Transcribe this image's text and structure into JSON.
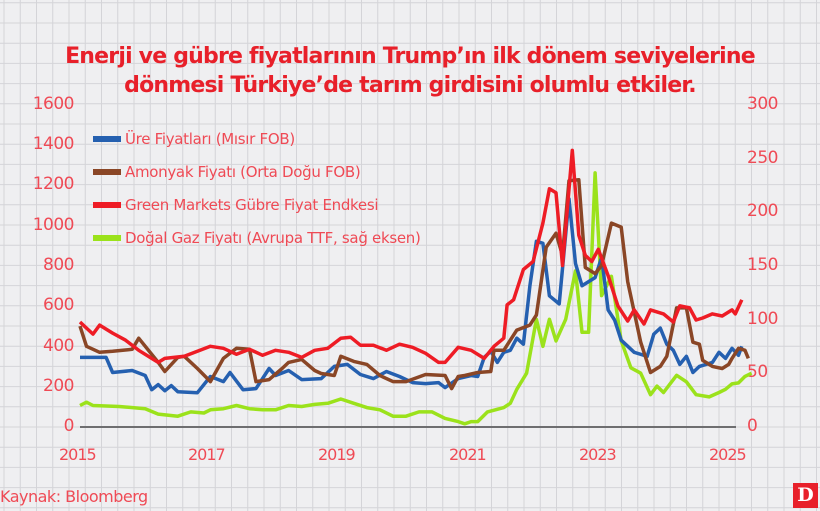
{
  "title_line1": "Enerji ve gübre fiyatlarının Trump’ın ilk dönem seviyelerine",
  "title_line2": "dönmesi Türkiye’de tarım girdisini olumlu etkiler.",
  "source": "Kaynak: Bloomberg",
  "logo": "D",
  "colors": {
    "background": "#efeff1",
    "grid": "#d4d4d8",
    "axis_text": "#ef4a55",
    "title": "#e8202a",
    "baseline": "#6e6e70"
  },
  "left_axis_ticks": [
    "1600",
    "1400",
    "1200",
    "1000",
    "800",
    "600",
    "400",
    "200",
    "0"
  ],
  "right_axis_ticks": [
    "300",
    "250",
    "200",
    "150",
    "100",
    "50",
    "0"
  ],
  "x_axis_ticks": [
    "2015",
    "2017",
    "2019",
    "2021",
    "2023",
    "2025"
  ],
  "legend": [
    {
      "label": "Üre Fiyatları (Mısır FOB)",
      "color": "#2560b0"
    },
    {
      "label": "Amonyak Fiyatı (Orta Doğu FOB)",
      "color": "#8a4626"
    },
    {
      "label": "Green Markets Gübre Fiyat Endkesi",
      "color": "#ee1c25"
    },
    {
      "label": "Doğal Gaz Fiyatı (Avrupa TTF, sağ eksen)",
      "color": "#9be21b"
    }
  ],
  "chart_data": {
    "type": "line",
    "title": "Enerji ve gübre fiyatlarının Trump’ın ilk dönem seviyelerine dönmesi Türkiye’de tarım girdisini olumlu etkiler.",
    "xlabel": "",
    "ylabel_left": "",
    "ylabel_right": "",
    "xlim": [
      2015,
      2025.1
    ],
    "ylim_left": [
      0,
      1600
    ],
    "ylim_right": [
      0,
      300
    ],
    "grid": true,
    "legend_position": "upper left",
    "series": [
      {
        "name": "Üre Fiyatları (Mısır FOB)",
        "axis": "left",
        "color": "#2560b0",
        "points": [
          [
            2015.0,
            345
          ],
          [
            2015.4,
            345
          ],
          [
            2015.5,
            270
          ],
          [
            2015.8,
            280
          ],
          [
            2016.0,
            255
          ],
          [
            2016.1,
            185
          ],
          [
            2016.2,
            210
          ],
          [
            2016.3,
            180
          ],
          [
            2016.4,
            205
          ],
          [
            2016.5,
            175
          ],
          [
            2016.8,
            170
          ],
          [
            2017.0,
            250
          ],
          [
            2017.2,
            225
          ],
          [
            2017.3,
            270
          ],
          [
            2017.5,
            185
          ],
          [
            2017.7,
            190
          ],
          [
            2017.9,
            290
          ],
          [
            2018.0,
            255
          ],
          [
            2018.2,
            280
          ],
          [
            2018.4,
            235
          ],
          [
            2018.7,
            240
          ],
          [
            2018.9,
            300
          ],
          [
            2019.1,
            310
          ],
          [
            2019.3,
            260
          ],
          [
            2019.5,
            240
          ],
          [
            2019.7,
            275
          ],
          [
            2019.9,
            250
          ],
          [
            2020.1,
            220
          ],
          [
            2020.3,
            215
          ],
          [
            2020.5,
            220
          ],
          [
            2020.6,
            195
          ],
          [
            2020.8,
            240
          ],
          [
            2021.0,
            255
          ],
          [
            2021.1,
            250
          ],
          [
            2021.2,
            345
          ],
          [
            2021.3,
            375
          ],
          [
            2021.4,
            320
          ],
          [
            2021.5,
            370
          ],
          [
            2021.6,
            380
          ],
          [
            2021.7,
            440
          ],
          [
            2021.8,
            410
          ],
          [
            2021.9,
            700
          ],
          [
            2022.0,
            920
          ],
          [
            2022.1,
            910
          ],
          [
            2022.2,
            650
          ],
          [
            2022.35,
            610
          ],
          [
            2022.5,
            1130
          ],
          [
            2022.6,
            810
          ],
          [
            2022.7,
            700
          ],
          [
            2022.9,
            740
          ],
          [
            2023.0,
            840
          ],
          [
            2023.1,
            580
          ],
          [
            2023.2,
            530
          ],
          [
            2023.3,
            430
          ],
          [
            2023.5,
            370
          ],
          [
            2023.7,
            350
          ],
          [
            2023.8,
            460
          ],
          [
            2023.9,
            490
          ],
          [
            2024.0,
            410
          ],
          [
            2024.1,
            380
          ],
          [
            2024.2,
            310
          ],
          [
            2024.3,
            350
          ],
          [
            2024.4,
            270
          ],
          [
            2024.5,
            300
          ],
          [
            2024.7,
            320
          ],
          [
            2024.8,
            370
          ],
          [
            2024.9,
            340
          ],
          [
            2025.0,
            390
          ],
          [
            2025.1,
            355
          ],
          [
            2025.15,
            400
          ]
        ]
      },
      {
        "name": "Amonyak Fiyatı (Orta Doğu FOB)",
        "axis": "left",
        "color": "#8a4626",
        "points": [
          [
            2015.0,
            500
          ],
          [
            2015.1,
            400
          ],
          [
            2015.3,
            370
          ],
          [
            2015.5,
            375
          ],
          [
            2015.8,
            385
          ],
          [
            2015.9,
            440
          ],
          [
            2016.2,
            320
          ],
          [
            2016.3,
            275
          ],
          [
            2016.5,
            345
          ],
          [
            2016.6,
            350
          ],
          [
            2016.8,
            290
          ],
          [
            2017.0,
            225
          ],
          [
            2017.2,
            340
          ],
          [
            2017.4,
            390
          ],
          [
            2017.6,
            385
          ],
          [
            2017.7,
            225
          ],
          [
            2017.9,
            235
          ],
          [
            2018.1,
            290
          ],
          [
            2018.2,
            320
          ],
          [
            2018.4,
            335
          ],
          [
            2018.6,
            280
          ],
          [
            2018.7,
            265
          ],
          [
            2018.9,
            255
          ],
          [
            2019.0,
            350
          ],
          [
            2019.2,
            325
          ],
          [
            2019.4,
            310
          ],
          [
            2019.6,
            255
          ],
          [
            2019.8,
            225
          ],
          [
            2020.0,
            225
          ],
          [
            2020.3,
            260
          ],
          [
            2020.6,
            255
          ],
          [
            2020.7,
            190
          ],
          [
            2020.8,
            250
          ],
          [
            2020.9,
            255
          ],
          [
            2021.1,
            270
          ],
          [
            2021.3,
            275
          ],
          [
            2021.35,
            380
          ],
          [
            2021.5,
            380
          ],
          [
            2021.7,
            480
          ],
          [
            2021.9,
            505
          ],
          [
            2022.0,
            555
          ],
          [
            2022.15,
            890
          ],
          [
            2022.3,
            960
          ],
          [
            2022.4,
            850
          ],
          [
            2022.5,
            1220
          ],
          [
            2022.65,
            1225
          ],
          [
            2022.75,
            790
          ],
          [
            2022.9,
            760
          ],
          [
            2023.0,
            800
          ],
          [
            2023.15,
            1010
          ],
          [
            2023.3,
            990
          ],
          [
            2023.4,
            720
          ],
          [
            2023.6,
            420
          ],
          [
            2023.75,
            270
          ],
          [
            2023.9,
            300
          ],
          [
            2024.0,
            350
          ],
          [
            2024.15,
            590
          ],
          [
            2024.3,
            590
          ],
          [
            2024.4,
            420
          ],
          [
            2024.5,
            410
          ],
          [
            2024.55,
            330
          ],
          [
            2024.7,
            300
          ],
          [
            2024.85,
            290
          ],
          [
            2024.95,
            310
          ],
          [
            2025.0,
            340
          ],
          [
            2025.1,
            390
          ],
          [
            2025.2,
            380
          ],
          [
            2025.25,
            340
          ]
        ]
      },
      {
        "name": "Green Markets Gübre Fiyat Endkesi",
        "axis": "left",
        "color": "#ee1c25",
        "points": [
          [
            2015.0,
            520
          ],
          [
            2015.1,
            490
          ],
          [
            2015.2,
            460
          ],
          [
            2015.3,
            505
          ],
          [
            2015.5,
            465
          ],
          [
            2015.7,
            430
          ],
          [
            2015.9,
            380
          ],
          [
            2016.1,
            340
          ],
          [
            2016.2,
            320
          ],
          [
            2016.3,
            340
          ],
          [
            2016.6,
            350
          ],
          [
            2016.8,
            375
          ],
          [
            2017.0,
            400
          ],
          [
            2017.2,
            390
          ],
          [
            2017.4,
            360
          ],
          [
            2017.6,
            385
          ],
          [
            2017.8,
            355
          ],
          [
            2018.0,
            380
          ],
          [
            2018.2,
            370
          ],
          [
            2018.4,
            345
          ],
          [
            2018.6,
            380
          ],
          [
            2018.8,
            390
          ],
          [
            2019.0,
            440
          ],
          [
            2019.15,
            445
          ],
          [
            2019.3,
            405
          ],
          [
            2019.5,
            405
          ],
          [
            2019.7,
            380
          ],
          [
            2019.9,
            410
          ],
          [
            2020.1,
            395
          ],
          [
            2020.3,
            365
          ],
          [
            2020.5,
            320
          ],
          [
            2020.6,
            320
          ],
          [
            2020.8,
            395
          ],
          [
            2021.0,
            380
          ],
          [
            2021.2,
            340
          ],
          [
            2021.35,
            400
          ],
          [
            2021.5,
            440
          ],
          [
            2021.55,
            605
          ],
          [
            2021.65,
            630
          ],
          [
            2021.8,
            780
          ],
          [
            2021.95,
            820
          ],
          [
            2022.1,
            1010
          ],
          [
            2022.2,
            1180
          ],
          [
            2022.3,
            1160
          ],
          [
            2022.4,
            800
          ],
          [
            2022.55,
            1370
          ],
          [
            2022.65,
            950
          ],
          [
            2022.75,
            850
          ],
          [
            2022.85,
            820
          ],
          [
            2022.95,
            880
          ],
          [
            2023.1,
            750
          ],
          [
            2023.25,
            600
          ],
          [
            2023.4,
            525
          ],
          [
            2023.5,
            580
          ],
          [
            2023.65,
            510
          ],
          [
            2023.75,
            580
          ],
          [
            2023.95,
            560
          ],
          [
            2024.1,
            520
          ],
          [
            2024.2,
            600
          ],
          [
            2024.35,
            590
          ],
          [
            2024.45,
            530
          ],
          [
            2024.55,
            540
          ],
          [
            2024.7,
            560
          ],
          [
            2024.85,
            550
          ],
          [
            2025.0,
            580
          ],
          [
            2025.05,
            560
          ],
          [
            2025.15,
            630
          ]
        ]
      },
      {
        "name": "Doğal Gaz Fiyatı (Avrupa TTF, sağ eksen)",
        "axis": "right",
        "color": "#9be21b",
        "points": [
          [
            2015.0,
            20
          ],
          [
            2015.1,
            23
          ],
          [
            2015.2,
            20
          ],
          [
            2015.6,
            19
          ],
          [
            2016.0,
            17
          ],
          [
            2016.2,
            12
          ],
          [
            2016.5,
            10
          ],
          [
            2016.7,
            14
          ],
          [
            2016.9,
            13
          ],
          [
            2017.0,
            16
          ],
          [
            2017.2,
            17
          ],
          [
            2017.4,
            20
          ],
          [
            2017.6,
            17
          ],
          [
            2017.8,
            16
          ],
          [
            2018.0,
            16
          ],
          [
            2018.2,
            20
          ],
          [
            2018.4,
            19
          ],
          [
            2018.6,
            21
          ],
          [
            2018.8,
            22
          ],
          [
            2019.0,
            26
          ],
          [
            2019.2,
            22
          ],
          [
            2019.4,
            18
          ],
          [
            2019.6,
            16
          ],
          [
            2019.8,
            10
          ],
          [
            2020.0,
            10
          ],
          [
            2020.2,
            14
          ],
          [
            2020.4,
            14
          ],
          [
            2020.6,
            8
          ],
          [
            2020.8,
            5
          ],
          [
            2020.9,
            3
          ],
          [
            2021.0,
            5
          ],
          [
            2021.1,
            5
          ],
          [
            2021.25,
            14
          ],
          [
            2021.5,
            18
          ],
          [
            2021.6,
            22
          ],
          [
            2021.7,
            35
          ],
          [
            2021.85,
            50
          ],
          [
            2022.0,
            100
          ],
          [
            2022.1,
            75
          ],
          [
            2022.2,
            100
          ],
          [
            2022.3,
            80
          ],
          [
            2022.45,
            100
          ],
          [
            2022.6,
            145
          ],
          [
            2022.7,
            88
          ],
          [
            2022.8,
            88
          ],
          [
            2022.9,
            236
          ],
          [
            2023.0,
            122
          ],
          [
            2023.15,
            140
          ],
          [
            2023.3,
            80
          ],
          [
            2023.45,
            55
          ],
          [
            2023.6,
            50
          ],
          [
            2023.75,
            30
          ],
          [
            2023.85,
            38
          ],
          [
            2023.95,
            32
          ],
          [
            2024.15,
            48
          ],
          [
            2024.3,
            42
          ],
          [
            2024.45,
            30
          ],
          [
            2024.65,
            28
          ],
          [
            2024.8,
            32
          ],
          [
            2024.9,
            35
          ],
          [
            2025.0,
            40
          ],
          [
            2025.1,
            41
          ],
          [
            2025.2,
            47
          ],
          [
            2025.3,
            50
          ]
        ]
      }
    ]
  }
}
